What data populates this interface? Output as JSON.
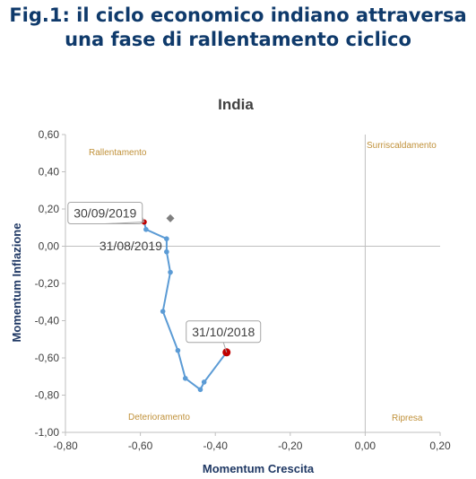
{
  "figure": {
    "title_line1": "Fig.1: il ciclo economico indiano attraversa",
    "title_line2": "una fase di rallentamento ciclico"
  },
  "chart_data": {
    "type": "scatter",
    "title": "India",
    "xlabel": "Momentum Crescita",
    "ylabel": "Momentum Inflazione",
    "xlim": [
      -0.8,
      0.2
    ],
    "ylim": [
      -1.0,
      0.6
    ],
    "xticks": [
      -0.8,
      -0.6,
      -0.4,
      -0.2,
      0.0,
      0.2
    ],
    "yticks": [
      0.6,
      0.4,
      0.2,
      0.0,
      -0.2,
      -0.4,
      -0.6,
      -0.8,
      -1.0
    ],
    "xtick_labels": [
      "-0,80",
      "-0,60",
      "-0,40",
      "-0,20",
      "0,00",
      "0,20"
    ],
    "ytick_labels": [
      "0,60",
      "0,40",
      "0,20",
      "0,00",
      "-0,20",
      "-0,40",
      "-0,60",
      "-0,80",
      "-1,00"
    ],
    "grid": false,
    "colors": {
      "path": "#5b9bd5",
      "current": "#c00000",
      "start": "#c00000",
      "diamond": "#7f7f7f",
      "quadrant_label": "#c0913a",
      "axis_title": "#1f3864"
    },
    "quadrants": {
      "top_left": "Rallentamento",
      "top_right": "Surriscaldamento",
      "bottom_left": "Deterioramento",
      "bottom_right": "Ripresa"
    },
    "series": [
      {
        "points": [
          {
            "x": -0.37,
            "y": -0.57
          },
          {
            "x": -0.43,
            "y": -0.73
          },
          {
            "x": -0.44,
            "y": -0.77
          },
          {
            "x": -0.48,
            "y": -0.71
          },
          {
            "x": -0.5,
            "y": -0.56
          },
          {
            "x": -0.54,
            "y": -0.35
          },
          {
            "x": -0.52,
            "y": -0.14
          },
          {
            "x": -0.53,
            "y": -0.03
          },
          {
            "x": -0.53,
            "y": 0.04
          },
          {
            "x": -0.585,
            "y": 0.09
          },
          {
            "x": -0.59,
            "y": 0.13
          }
        ]
      }
    ],
    "highlight_start": {
      "x": -0.37,
      "y": -0.57
    },
    "highlight_end": {
      "x": -0.59,
      "y": 0.13
    },
    "diamond": {
      "x": -0.52,
      "y": 0.15
    },
    "annotations": [
      {
        "text": "31/10/2018",
        "x": -0.37,
        "y": -0.57
      },
      {
        "text": "30/09/2019",
        "x": -0.59,
        "y": 0.13
      },
      {
        "text": "31/08/2019",
        "x": -0.53,
        "y": 0.04
      }
    ]
  }
}
